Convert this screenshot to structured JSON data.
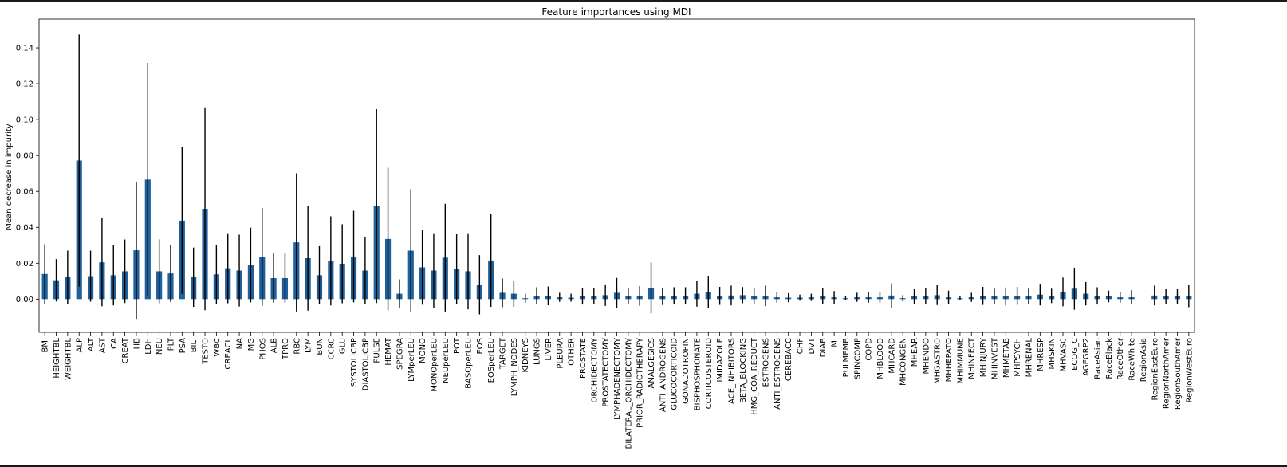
{
  "chart_data": {
    "type": "bar",
    "title": "Feature importances using MDI",
    "xlabel": "",
    "ylabel": "Mean decrease in impurity",
    "ylim": [
      -0.0185,
      0.156
    ],
    "yticks": [
      "0.00",
      "0.02",
      "0.04",
      "0.06",
      "0.08",
      "0.10",
      "0.12",
      "0.14"
    ],
    "yticks_values": [
      0,
      0.02,
      0.04,
      0.06,
      0.08,
      0.1,
      0.12,
      0.14
    ],
    "grid": false,
    "legend": "none",
    "colors": {
      "bar": "#1f5f9a",
      "error_bar": "#000000",
      "axis": "#000000"
    },
    "categories": [
      "BMI",
      "HEIGHTBL",
      "WEIGHTBL",
      "ALP",
      "ALT",
      "AST",
      "CA",
      "CREAT",
      "HB",
      "LDH",
      "NEU",
      "PLT",
      "PSA",
      "TBILI",
      "TESTO",
      "WBC",
      "CREACL",
      "NA",
      "MG",
      "PHOS",
      "ALB",
      "TPRO",
      "RBC",
      "LYM",
      "BUN",
      "CCRC",
      "GLU",
      "SYSTOLICBP",
      "DIASTOLICBP",
      "PULSE",
      "HEMAT",
      "SPEGRA",
      "LYMperLEU",
      "MONO",
      "MONOperLEU",
      "NEUperLEU",
      "POT",
      "BASOperLEU",
      "EOS",
      "EOSperLEU",
      "TARGET",
      "LYMPH_NODES",
      "KIDNEYS",
      "LUNGS",
      "LIVER",
      "PLEURA",
      "OTHER",
      "PROSTATE",
      "ORCHIDECTOMY",
      "PROSTATECTOMY",
      "LYMPHADENECTOMY",
      "BILATERAL_ORCHIDECTOMY",
      "PRIOR_RADIOTHERAPY",
      "ANALGESICS",
      "ANTI_ANDROGENS",
      "GLUCOCORTICOID",
      "GONADOTROPIN",
      "BISPHOSPHONATE",
      "CORTICOSTEROID",
      "IMIDAZOLE",
      "ACE_INHIBITORS",
      "BETA_BLOCKING",
      "HMG_COA_REDUCT",
      "ESTROGENS",
      "ANTI_ESTROGENS",
      "CEREBACC",
      "CHF",
      "DVT",
      "DIAB",
      "MI",
      "PULMEMB",
      "SPINCOMP",
      "COPD",
      "MHBLOOD",
      "MHCARD",
      "MHCONGEN",
      "MHEAR",
      "MHENDO",
      "MHGASTRO",
      "MHHEPATO",
      "MHIMMUNE",
      "MHINFECT",
      "MHINJURY",
      "MHINVEST",
      "MHMETAB",
      "MHPSYCH",
      "MHRENAL",
      "MHRESP",
      "MHSKIN",
      "MHVASC",
      "ECOG_C",
      "AGEGRP2",
      "RaceAsian",
      "RaceBlack",
      "RaceOther",
      "RaceWhite",
      "RegionAsia",
      "RegionEastEuro",
      "RegionNorthAmer",
      "RegionSouthAmer",
      "RegionWestEuro"
    ],
    "values": [
      0.014,
      0.0105,
      0.0122,
      0.0772,
      0.0128,
      0.0205,
      0.0133,
      0.0155,
      0.0272,
      0.0666,
      0.0155,
      0.0143,
      0.0437,
      0.0122,
      0.0503,
      0.0138,
      0.0172,
      0.0159,
      0.019,
      0.0235,
      0.0117,
      0.0117,
      0.0316,
      0.0228,
      0.0133,
      0.0213,
      0.0197,
      0.0237,
      0.0159,
      0.0518,
      0.0335,
      0.003,
      0.027,
      0.0177,
      0.0159,
      0.0231,
      0.0168,
      0.0155,
      0.008,
      0.0215,
      0.0035,
      0.003,
      0.0005,
      0.0018,
      0.0018,
      0.001,
      0.0008,
      0.0015,
      0.0018,
      0.0022,
      0.0035,
      0.0018,
      0.0018,
      0.0062,
      0.0015,
      0.0018,
      0.0018,
      0.003,
      0.004,
      0.0018,
      0.002,
      0.0022,
      0.0018,
      0.0018,
      0.001,
      0.0008,
      0.0008,
      0.001,
      0.0018,
      0.001,
      0.0005,
      0.001,
      0.001,
      0.001,
      0.002,
      0.0005,
      0.0015,
      0.0015,
      0.0022,
      0.001,
      0.0005,
      0.001,
      0.0018,
      0.0015,
      0.0015,
      0.0018,
      0.0015,
      0.0025,
      0.0018,
      0.004,
      0.0058,
      0.003,
      0.0018,
      0.0015,
      0.001,
      0.001,
      0.0,
      0.002,
      0.0015,
      0.0015,
      0.0018
    ],
    "errors": [
      0.0165,
      0.0118,
      0.0148,
      0.0702,
      0.0142,
      0.0245,
      0.0168,
      0.0177,
      0.0382,
      0.065,
      0.0178,
      0.0158,
      0.0408,
      0.0165,
      0.0565,
      0.0165,
      0.0195,
      0.02,
      0.0208,
      0.0272,
      0.0137,
      0.0137,
      0.0385,
      0.0292,
      0.0162,
      0.0248,
      0.022,
      0.0255,
      0.0185,
      0.054,
      0.0397,
      0.008,
      0.0343,
      0.0208,
      0.0208,
      0.03,
      0.0193,
      0.0212,
      0.0165,
      0.0258,
      0.008,
      0.0073,
      0.0025,
      0.0048,
      0.0052,
      0.0025,
      0.0022,
      0.0045,
      0.0043,
      0.006,
      0.0083,
      0.0043,
      0.0055,
      0.0142,
      0.0048,
      0.0048,
      0.0048,
      0.0072,
      0.009,
      0.005,
      0.0055,
      0.0045,
      0.0043,
      0.0057,
      0.003,
      0.0025,
      0.0017,
      0.002,
      0.0043,
      0.0035,
      0.0012,
      0.0025,
      0.003,
      0.003,
      0.0068,
      0.0017,
      0.004,
      0.0045,
      0.0055,
      0.0037,
      0.0012,
      0.0025,
      0.005,
      0.0043,
      0.005,
      0.005,
      0.0043,
      0.006,
      0.004,
      0.008,
      0.0117,
      0.0065,
      0.0048,
      0.0032,
      0.003,
      0.004,
      0.0,
      0.0055,
      0.004,
      0.004,
      0.0063
    ]
  }
}
